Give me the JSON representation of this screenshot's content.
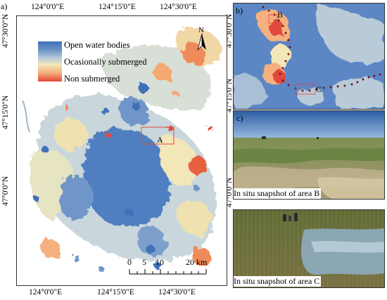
{
  "panels": {
    "a": "a)",
    "b": "b)",
    "c": "c)"
  },
  "map_a": {
    "top_longitudes": [
      "124°0'0\"E",
      "124°15'0\"E",
      "124°30'0\"E"
    ],
    "bottom_longitudes": [
      "124°0'0\"E",
      "124°15'0\"E",
      "124°30'0\"E"
    ],
    "left_latitudes": [
      "47°30'0\"N",
      "47°15'0\"N",
      "47°0'0\"N"
    ],
    "right_latitudes": [
      "47°30'0\"N",
      "47°15'0\"N",
      "47°0'0\"N"
    ],
    "legend": [
      {
        "label": "Open water bodies",
        "color": "#3f6fb8"
      },
      {
        "label": "Ocasionally submerged",
        "color": "#f3e7b9"
      },
      {
        "label": "Non submerged",
        "color": "#e0493a"
      }
    ],
    "north_arrow": "N",
    "scale_bar": {
      "ticks": [
        "0",
        "5",
        "10",
        "20 km"
      ]
    },
    "area_marker": "A"
  },
  "map_b": {
    "markers": [
      "B",
      "C"
    ]
  },
  "snapshots": {
    "b_caption": "In situ snapshot of area B",
    "c_caption": "In situ snapshot of area C"
  }
}
